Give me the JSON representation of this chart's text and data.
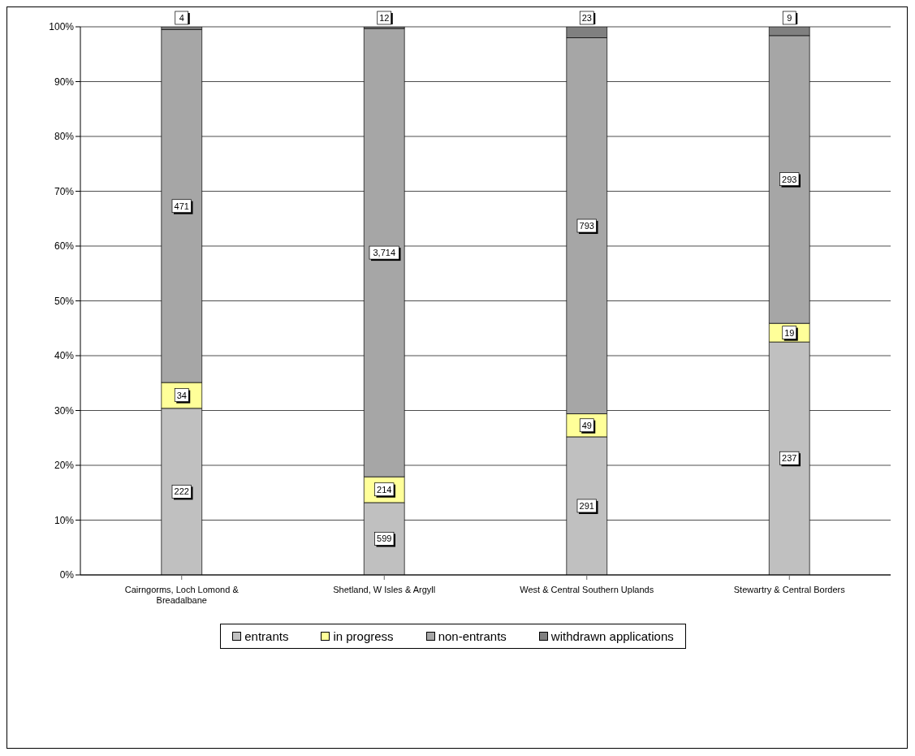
{
  "chart_data": {
    "type": "bar",
    "stacked": true,
    "categories": [
      "Cairngorms, Loch Lomond & Breadalbane",
      "Shetland, W Isles & Argyll",
      "West & Central Southern Uplands",
      "Stewartry & Central Borders"
    ],
    "series": [
      {
        "name": "entrants",
        "color": "#c0c0c0",
        "values": [
          30.4,
          13.2,
          25.2,
          42.5
        ]
      },
      {
        "name": "in progress",
        "color": "#ffff99",
        "values": [
          4.7,
          4.7,
          4.2,
          3.4
        ]
      },
      {
        "name": "non-entrants",
        "color": "#a6a6a6",
        "values": [
          64.4,
          81.8,
          68.6,
          52.5
        ]
      },
      {
        "name": "withdrawn applications",
        "color": "#808080",
        "values": [
          0.5,
          0.3,
          2.0,
          1.6
        ]
      }
    ],
    "annotations": [
      {
        "text": "222",
        "x": "Cairngorms, Loch Lomond & Breadalbane",
        "y": 15.2
      },
      {
        "text": "34",
        "x": "Cairngorms, Loch Lomond & Breadalbane",
        "y": 32.8
      },
      {
        "text": "471",
        "x": "Cairngorms, Loch Lomond & Breadalbane",
        "y": 67.3
      },
      {
        "text": "4",
        "x": "Cairngorms, Loch Lomond & Breadalbane",
        "y": 100
      },
      {
        "text": "599",
        "x": "Shetland, W Isles & Argyll",
        "y": 6.6
      },
      {
        "text": "214",
        "x": "Shetland, W Isles & Argyll",
        "y": 15.6
      },
      {
        "text": "3,714",
        "x": "Shetland, W Isles & Argyll",
        "y": 58.8
      },
      {
        "text": "12",
        "x": "Shetland, W Isles & Argyll",
        "y": 100
      },
      {
        "text": "291",
        "x": "West & Central Southern Uplands",
        "y": 12.6
      },
      {
        "text": "49",
        "x": "West & Central Southern Uplands",
        "y": 27.3
      },
      {
        "text": "793",
        "x": "West & Central Southern Uplands",
        "y": 63.7
      },
      {
        "text": "23",
        "x": "West & Central Southern Uplands",
        "y": 100
      },
      {
        "text": "237",
        "x": "Stewartry & Central Borders",
        "y": 21.3
      },
      {
        "text": "19",
        "x": "Stewartry & Central Borders",
        "y": 44.2
      },
      {
        "text": "293",
        "x": "Stewartry & Central Borders",
        "y": 72.2
      },
      {
        "text": "9",
        "x": "Stewartry & Central Borders",
        "y": 100
      }
    ],
    "ylim": [
      0,
      100
    ],
    "yticks": [
      {
        "value": 0,
        "label": "0%"
      },
      {
        "value": 10,
        "label": "10%"
      },
      {
        "value": 20,
        "label": "20%"
      },
      {
        "value": 30,
        "label": "30%"
      },
      {
        "value": 40,
        "label": "40%"
      },
      {
        "value": 50,
        "label": "50%"
      },
      {
        "value": 60,
        "label": "60%"
      },
      {
        "value": 70,
        "label": "70%"
      },
      {
        "value": 80,
        "label": "80%"
      },
      {
        "value": 90,
        "label": "90%"
      },
      {
        "value": 100,
        "label": "100%"
      }
    ],
    "grid": "y",
    "legend": "bottom"
  }
}
